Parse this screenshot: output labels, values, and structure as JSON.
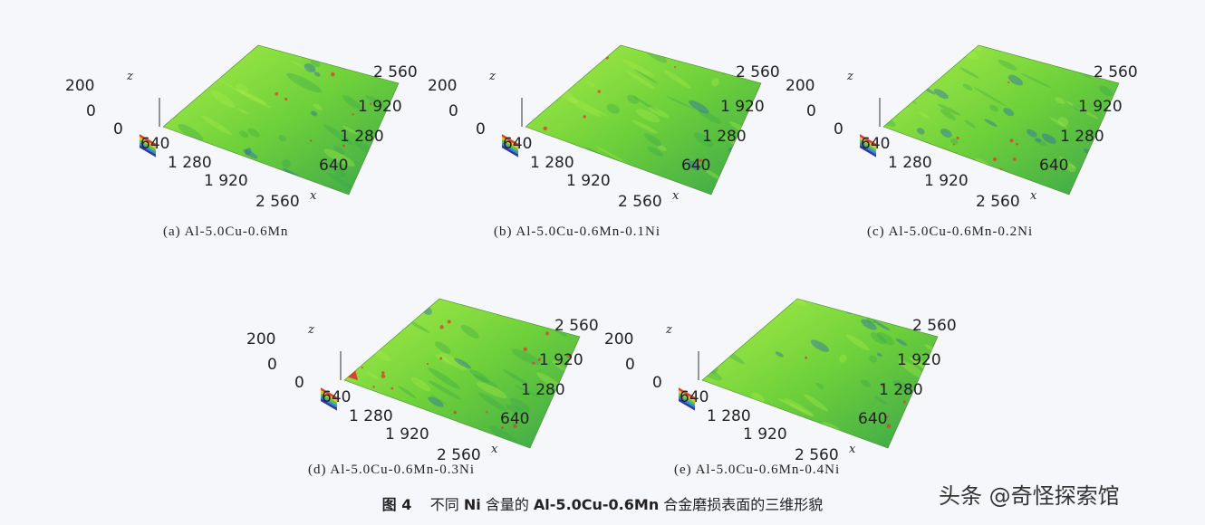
{
  "panels": [
    {
      "caption": "(a) Al-5.0Cu-0.6Mn"
    },
    {
      "caption": "(b) Al-5.0Cu-0.6Mn-0.1Ni"
    },
    {
      "caption": "(c) Al-5.0Cu-0.6Mn-0.2Ni"
    },
    {
      "caption": "(d) Al-5.0Cu-0.6Mn-0.3Ni"
    },
    {
      "caption": "(e) Al-5.0Cu-0.6Mn-0.4Ni"
    }
  ],
  "axes": {
    "z_label": "z",
    "x_label": "x",
    "z_ticks": [
      "200",
      "0"
    ],
    "origin": "0",
    "left_ticks": [
      "640",
      "1 280",
      "1 920",
      "2 560"
    ],
    "right_ticks": [
      "2 560",
      "1 920",
      "1 280",
      "640"
    ]
  },
  "figure_caption": {
    "prefix": "图 4",
    "text_1": "不同",
    "bold_1": "Ni",
    "text_2": "含量的",
    "bold_2": "Al-5.0Cu-0.6Mn",
    "text_3": "合金磨损表面的三维形貌"
  },
  "watermark": "头条 @奇怪探索馆",
  "colors": {
    "surface": "#6fd13a",
    "surface_light": "#a8ec48",
    "surface_dark": "#3aa64a",
    "pit": "#2f6fa8",
    "peak": "#d8442a",
    "background": "#f6f7fb"
  }
}
